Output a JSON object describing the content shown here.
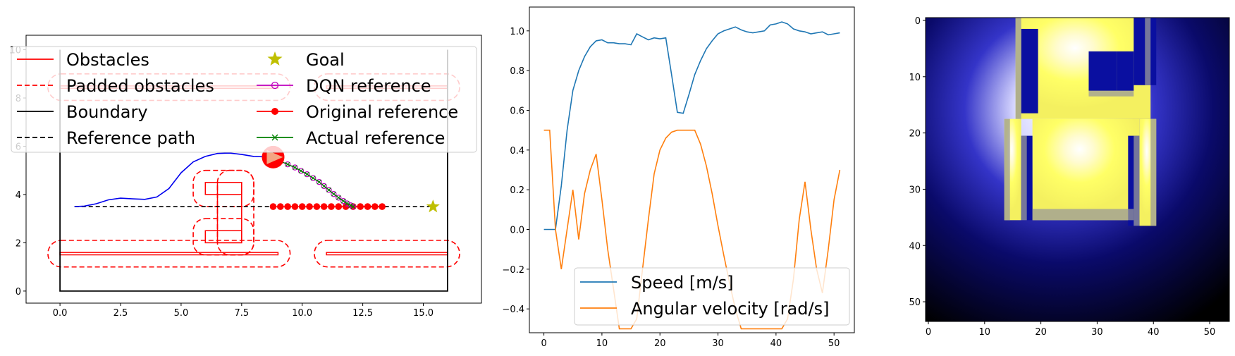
{
  "chart_data": [
    {
      "type": "line",
      "title": "",
      "xlabel": "",
      "ylabel": "",
      "xlim": [
        -1.4,
        17.4
      ],
      "ylim": [
        -0.5,
        10.6
      ],
      "xticks": [
        "0.0",
        "2.5",
        "5.0",
        "7.5",
        "10.0",
        "12.5",
        "15.0"
      ],
      "xtick_values": [
        0,
        2.5,
        5,
        7.5,
        10,
        12.5,
        15
      ],
      "yticks": [
        "0",
        "2",
        "4",
        "6",
        "8",
        "10"
      ],
      "ytick_values": [
        0,
        2,
        4,
        6,
        8,
        10
      ],
      "legend_loc": "upper-left",
      "legend": [
        {
          "label": "Obstacles",
          "style": "solid",
          "color": "#ff0000",
          "marker": "none"
        },
        {
          "label": "Padded obstacles",
          "style": "dashed",
          "color": "#ff0000",
          "marker": "none"
        },
        {
          "label": "Boundary",
          "style": "solid",
          "color": "#000000",
          "marker": "none"
        },
        {
          "label": "Reference path",
          "style": "dashed",
          "color": "#000000",
          "marker": "none"
        },
        {
          "label": "Goal",
          "style": "none",
          "color": "#bfbf00",
          "marker": "star"
        },
        {
          "label": "DQN reference",
          "style": "solid",
          "color": "#bf00bf",
          "marker": "hollow-circle"
        },
        {
          "label": "Original reference",
          "style": "solid",
          "color": "#ff0000",
          "marker": "filled-circle"
        },
        {
          "label": "Actual reference",
          "style": "solid",
          "color": "#008000",
          "marker": "x"
        }
      ],
      "boundary": [
        [
          0,
          10
        ],
        [
          0,
          0
        ],
        [
          16,
          0
        ],
        [
          16,
          10
        ]
      ],
      "obstacles": [
        [
          [
            0,
            1.5
          ],
          [
            9,
            1.5
          ],
          [
            9,
            1.6
          ],
          [
            0,
            1.6
          ]
        ],
        [
          [
            11,
            1.5
          ],
          [
            16,
            1.5
          ],
          [
            16,
            1.6
          ],
          [
            11,
            1.6
          ]
        ],
        [
          [
            0,
            8.4
          ],
          [
            9,
            8.4
          ],
          [
            9,
            8.5
          ],
          [
            0,
            8.5
          ]
        ],
        [
          [
            11,
            8.4
          ],
          [
            16,
            8.4
          ],
          [
            16,
            8.5
          ],
          [
            11,
            8.5
          ]
        ],
        [
          [
            6,
            2.0
          ],
          [
            7.5,
            2.0
          ],
          [
            7.5,
            2.5
          ],
          [
            6,
            2.5
          ]
        ],
        [
          [
            6.5,
            2.0
          ],
          [
            7.5,
            2.0
          ],
          [
            7.5,
            4.5
          ],
          [
            6.5,
            4.5
          ]
        ],
        [
          [
            6,
            4.0
          ],
          [
            7.5,
            4.0
          ],
          [
            7.5,
            4.5
          ],
          [
            6,
            4.5
          ]
        ]
      ],
      "padded_obstacles": [
        {
          "x": [
            -0.5,
            9.5
          ],
          "y": [
            1.0,
            2.1
          ],
          "r": 0.55
        },
        {
          "x": [
            10.5,
            16.5
          ],
          "y": [
            1.0,
            2.1
          ],
          "r": 0.55
        },
        {
          "x": [
            -0.5,
            9.5
          ],
          "y": [
            7.9,
            9.0
          ],
          "r": 0.55
        },
        {
          "x": [
            10.5,
            16.5
          ],
          "y": [
            7.9,
            9.0
          ],
          "r": 0.55
        },
        {
          "x": [
            5.5,
            8.0
          ],
          "y": [
            1.5,
            3.0
          ],
          "r": 0.5
        },
        {
          "x": [
            6.5,
            8.0
          ],
          "y": [
            1.5,
            5.0
          ],
          "r": 0.5
        },
        {
          "x": [
            5.5,
            8.0
          ],
          "y": [
            3.5,
            5.0
          ],
          "r": 0.5
        }
      ],
      "reference_path": {
        "x": [
          0.6,
          15.4
        ],
        "y": [
          3.5,
          3.5
        ]
      },
      "goal": [
        15.4,
        3.5
      ],
      "traveled_path": {
        "x": [
          0.6,
          1.0,
          1.5,
          2.0,
          2.5,
          3.0,
          3.5,
          4.0,
          4.5,
          5.0,
          5.5,
          6.0,
          6.5,
          7.0,
          7.5,
          8.0,
          8.5,
          8.8
        ],
        "y": [
          3.5,
          3.52,
          3.62,
          3.78,
          3.85,
          3.82,
          3.8,
          3.9,
          4.25,
          4.9,
          5.35,
          5.58,
          5.7,
          5.72,
          5.66,
          5.58,
          5.56,
          5.56
        ]
      },
      "robot": {
        "x": 8.8,
        "y": 5.55,
        "heading_deg": 0,
        "color": "#ff0000",
        "arrow_color": "#f4a582"
      },
      "dqn_reference": {
        "x": [
          9.1,
          9.4,
          9.7,
          9.95,
          10.2,
          10.45,
          10.7,
          10.9,
          11.1,
          11.3,
          11.5,
          11.7,
          11.85,
          12.0,
          12.1
        ],
        "y": [
          5.38,
          5.25,
          5.12,
          4.98,
          4.84,
          4.68,
          4.52,
          4.35,
          4.19,
          4.02,
          3.87,
          3.73,
          3.63,
          3.55,
          3.5
        ]
      },
      "actual_reference": {
        "x": [
          9.1,
          9.4,
          9.7,
          9.95,
          10.2,
          10.45,
          10.7,
          10.9,
          11.1,
          11.3,
          11.5,
          11.7,
          11.85,
          12.0,
          12.1
        ],
        "y": [
          5.38,
          5.25,
          5.12,
          4.98,
          4.84,
          4.68,
          4.52,
          4.35,
          4.19,
          4.02,
          3.87,
          3.73,
          3.63,
          3.55,
          3.5
        ]
      },
      "original_reference": {
        "x": [
          8.8,
          9.1,
          9.4,
          9.7,
          10.0,
          10.3,
          10.6,
          10.9,
          11.2,
          11.5,
          11.8,
          12.1,
          12.4,
          12.7,
          13.0,
          13.3
        ],
        "y": [
          3.5,
          3.5,
          3.5,
          3.5,
          3.5,
          3.5,
          3.5,
          3.5,
          3.5,
          3.5,
          3.5,
          3.5,
          3.5,
          3.5,
          3.5,
          3.5
        ]
      }
    },
    {
      "type": "line",
      "title": "",
      "xlabel": "",
      "ylabel": "",
      "xlim": [
        -2.5,
        53.5
      ],
      "ylim": [
        -0.52,
        1.12
      ],
      "xticks": [
        "0",
        "10",
        "20",
        "30",
        "40",
        "50"
      ],
      "xtick_values": [
        0,
        10,
        20,
        30,
        40,
        50
      ],
      "yticks": [
        "−0.4",
        "−0.2",
        "0.0",
        "0.2",
        "0.4",
        "0.6",
        "0.8",
        "1.0"
      ],
      "ytick_values": [
        -0.4,
        -0.2,
        0,
        0.2,
        0.4,
        0.6,
        0.8,
        1.0
      ],
      "legend_loc": "lower-center",
      "series": [
        {
          "name": "Speed [m/s]",
          "color": "#1f77b4",
          "x": [
            0,
            1,
            2,
            3,
            4,
            5,
            6,
            7,
            8,
            9,
            10,
            11,
            12,
            13,
            14,
            15,
            16,
            17,
            18,
            19,
            20,
            21,
            22,
            23,
            24,
            25,
            26,
            27,
            28,
            29,
            30,
            31,
            32,
            33,
            34,
            35,
            36,
            37,
            38,
            39,
            40,
            41,
            42,
            43,
            44,
            45,
            46,
            47,
            48,
            49,
            50,
            51
          ],
          "values": [
            0.0,
            0.0,
            0.0,
            0.22,
            0.5,
            0.7,
            0.8,
            0.87,
            0.92,
            0.95,
            0.955,
            0.94,
            0.94,
            0.935,
            0.935,
            0.93,
            0.985,
            0.97,
            0.955,
            0.965,
            0.96,
            0.965,
            0.78,
            0.59,
            0.585,
            0.68,
            0.78,
            0.85,
            0.91,
            0.95,
            0.985,
            1.0,
            1.01,
            1.02,
            1.005,
            0.995,
            0.99,
            0.995,
            1.0,
            1.03,
            1.035,
            1.045,
            1.035,
            1.01,
            1.0,
            0.995,
            0.985,
            0.99,
            0.995,
            0.98,
            0.985,
            0.99
          ]
        },
        {
          "name": "Angular velocity [rad/s]",
          "color": "#ff7f0e",
          "x": [
            0,
            1,
            2,
            3,
            4,
            5,
            6,
            7,
            8,
            9,
            10,
            11,
            12,
            13,
            14,
            15,
            16,
            17,
            18,
            19,
            20,
            21,
            22,
            23,
            24,
            25,
            26,
            27,
            28,
            29,
            30,
            31,
            32,
            33,
            34,
            35,
            36,
            37,
            38,
            39,
            40,
            41,
            42,
            43,
            44,
            45,
            46,
            47,
            48,
            49,
            50,
            51
          ],
          "values": [
            0.5,
            0.5,
            0.0,
            -0.2,
            0.0,
            0.2,
            -0.05,
            0.18,
            0.3,
            0.38,
            0.15,
            -0.1,
            -0.3,
            -0.5,
            -0.5,
            -0.5,
            -0.45,
            -0.2,
            0.05,
            0.28,
            0.4,
            0.46,
            0.49,
            0.5,
            0.5,
            0.5,
            0.5,
            0.43,
            0.32,
            0.18,
            0.02,
            -0.13,
            -0.27,
            -0.4,
            -0.5,
            -0.5,
            -0.5,
            -0.5,
            -0.5,
            -0.5,
            -0.5,
            -0.5,
            -0.45,
            -0.25,
            0.05,
            0.24,
            0.0,
            -0.2,
            -0.32,
            -0.1,
            0.15,
            0.3
          ]
        }
      ]
    },
    {
      "type": "heatmap",
      "title": "",
      "xlabel": "",
      "ylabel": "",
      "xlim": [
        -0.5,
        53.5
      ],
      "ylim": [
        53.5,
        -0.5
      ],
      "xticks": [
        "0",
        "10",
        "20",
        "30",
        "40",
        "50"
      ],
      "xtick_values": [
        0,
        10,
        20,
        30,
        40,
        50
      ],
      "yticks": [
        "0",
        "10",
        "20",
        "30",
        "40",
        "50"
      ],
      "ytick_values": [
        0,
        10,
        20,
        30,
        40,
        50
      ],
      "grid_size": 54,
      "colors": {
        "background": "#000000",
        "glow_center": "#ffffff",
        "region": "#ffff66",
        "hole": "#0a0fa0",
        "edge": "#9a9a9a"
      },
      "light_center": [
        27,
        15
      ],
      "free_region": {
        "bands": [
          {
            "rows": [
              0,
              18
            ],
            "cols": [
              16,
              40
            ]
          },
          {
            "rows": [
              18,
              36
            ],
            "cols": [
              19,
              38
            ]
          },
          {
            "rows": [
              18,
              36
            ],
            "cols": [
              14,
              17
            ]
          },
          {
            "rows": [
              18,
              37
            ],
            "cols": [
              38,
              41
            ]
          }
        ]
      },
      "holes": [
        {
          "rows": [
            0,
            18
          ],
          "cols": [
            0,
            16
          ]
        },
        {
          "rows": [
            0,
            18
          ],
          "cols": [
            40,
            54
          ]
        },
        {
          "rows": [
            2,
            17
          ],
          "cols": [
            17,
            20
          ]
        },
        {
          "rows": [
            0,
            12
          ],
          "cols": [
            37,
            41
          ]
        },
        {
          "rows": [
            6,
            13
          ],
          "cols": [
            29,
            34
          ]
        },
        {
          "rows": [
            6,
            13
          ],
          "cols": [
            34,
            37
          ]
        },
        {
          "rows": [
            18,
            36
          ],
          "cols": [
            0,
            14
          ]
        },
        {
          "rows": [
            21,
            36
          ],
          "cols": [
            17,
            19
          ]
        },
        {
          "rows": [
            21,
            37
          ],
          "cols": [
            36,
            38
          ]
        },
        {
          "rows": [
            18,
            54
          ],
          "cols": [
            41,
            54
          ]
        }
      ]
    }
  ]
}
